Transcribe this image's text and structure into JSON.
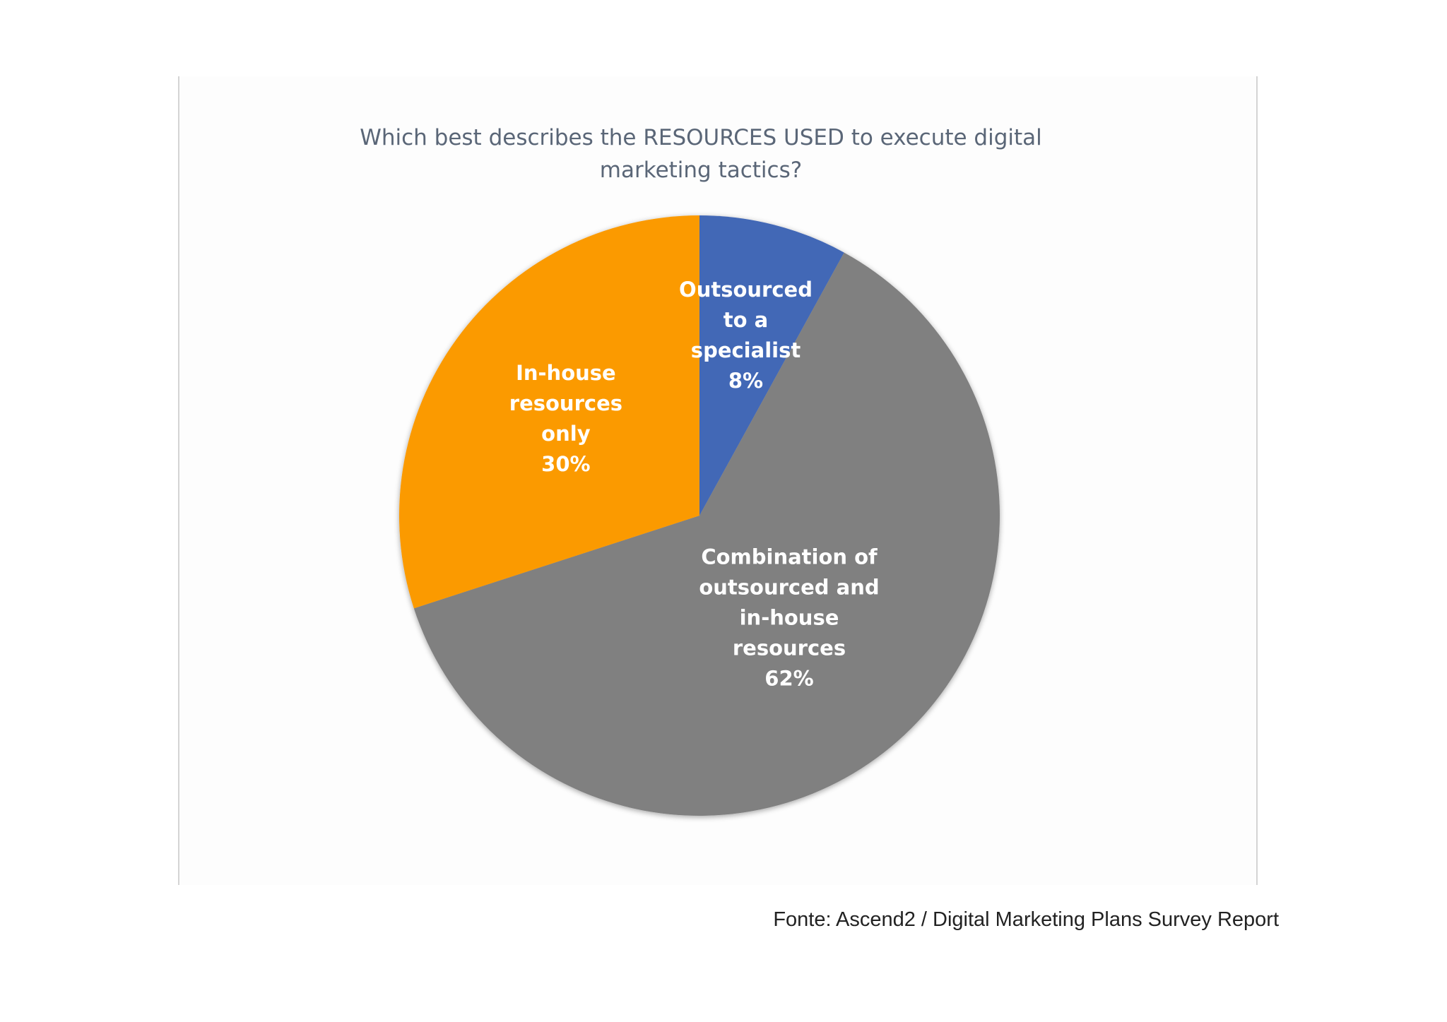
{
  "chart_data": {
    "type": "pie",
    "title": "Which best describes the RESOURCES USED to execute digital\nmarketing tactics?",
    "slices": [
      {
        "label": "Outsourced\nto a\nspecialist",
        "pct_label": "8%",
        "value": 8,
        "color": "#4267b6"
      },
      {
        "label": "Combination of\noutsourced and\nin-house\nresources",
        "pct_label": "62%",
        "value": 62,
        "color": "#808080"
      },
      {
        "label": "In-house\nresources\nonly",
        "pct_label": "30%",
        "value": 30,
        "color": "#fb9a00"
      }
    ]
  },
  "source": "Fonte: Ascend2 / Digital Marketing Plans Survey Report"
}
